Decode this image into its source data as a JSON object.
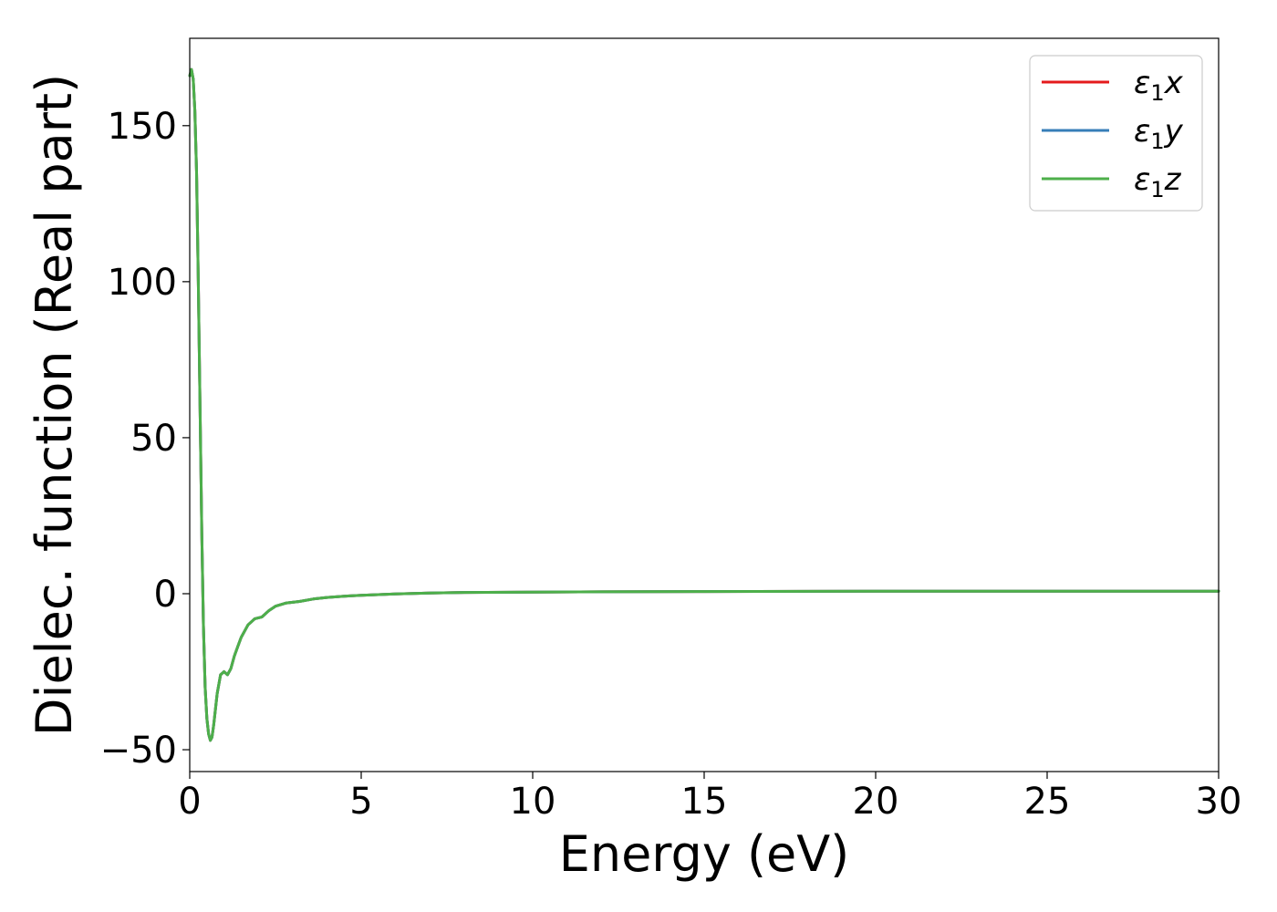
{
  "chart_data": {
    "type": "line",
    "xlabel": "Energy (eV)",
    "ylabel": "Dielec. function (Real part)",
    "xlim": [
      0,
      30
    ],
    "ylim": [
      -57,
      178
    ],
    "xticks": [
      0,
      5,
      10,
      15,
      20,
      25,
      30
    ],
    "xtick_labels": [
      "0",
      "5",
      "10",
      "15",
      "20",
      "25",
      "30"
    ],
    "yticks": [
      -50,
      0,
      50,
      100,
      150
    ],
    "ytick_labels": [
      "−50",
      "0",
      "50",
      "100",
      "150"
    ],
    "grid": false,
    "legend_position": "top-right",
    "series": [
      {
        "name": "ε1x",
        "legend_base": "ε",
        "legend_sub": "1",
        "legend_var": "x",
        "color": "#e41a1c",
        "x": [
          0,
          0.05,
          0.1,
          0.15,
          0.2,
          0.25,
          0.3,
          0.35,
          0.4,
          0.45,
          0.5,
          0.55,
          0.6,
          0.65,
          0.7,
          0.8,
          0.9,
          1.0,
          1.1,
          1.2,
          1.3,
          1.4,
          1.5,
          1.7,
          1.9,
          2.1,
          2.3,
          2.5,
          2.8,
          3.2,
          3.6,
          4.0,
          4.5,
          5,
          6,
          7,
          8,
          10,
          12,
          15,
          20,
          25,
          30
        ],
        "y": [
          166,
          168,
          165,
          155,
          135,
          100,
          60,
          20,
          -10,
          -30,
          -40,
          -45,
          -47,
          -46,
          -42,
          -32,
          -26,
          -25,
          -26,
          -24,
          -20,
          -17,
          -14,
          -10,
          -8,
          -7.5,
          -5.5,
          -4,
          -3,
          -2.5,
          -1.7,
          -1.2,
          -0.8,
          -0.5,
          -0.1,
          0.2,
          0.4,
          0.5,
          0.6,
          0.7,
          0.8,
          0.8,
          0.8
        ]
      },
      {
        "name": "ε1y",
        "legend_base": "ε",
        "legend_sub": "1",
        "legend_var": "y",
        "color": "#377eb8",
        "x": [
          0,
          0.05,
          0.1,
          0.15,
          0.2,
          0.25,
          0.3,
          0.35,
          0.4,
          0.45,
          0.5,
          0.55,
          0.6,
          0.65,
          0.7,
          0.8,
          0.9,
          1.0,
          1.1,
          1.2,
          1.3,
          1.4,
          1.5,
          1.7,
          1.9,
          2.1,
          2.3,
          2.5,
          2.8,
          3.2,
          3.6,
          4.0,
          4.5,
          5,
          6,
          7,
          8,
          10,
          12,
          15,
          20,
          25,
          30
        ],
        "y": [
          166,
          168,
          165,
          155,
          135,
          100,
          60,
          20,
          -10,
          -30,
          -40,
          -45,
          -47,
          -46,
          -42,
          -32,
          -26,
          -25,
          -26,
          -24,
          -20,
          -17,
          -14,
          -10,
          -8,
          -7.5,
          -5.5,
          -4,
          -3,
          -2.5,
          -1.7,
          -1.2,
          -0.8,
          -0.5,
          -0.1,
          0.2,
          0.4,
          0.5,
          0.6,
          0.7,
          0.8,
          0.8,
          0.8
        ]
      },
      {
        "name": "ε1z",
        "legend_base": "ε",
        "legend_sub": "1",
        "legend_var": "z",
        "color": "#4daf4a",
        "x": [
          0,
          0.05,
          0.1,
          0.15,
          0.2,
          0.25,
          0.3,
          0.35,
          0.4,
          0.45,
          0.5,
          0.55,
          0.6,
          0.65,
          0.7,
          0.8,
          0.9,
          1.0,
          1.1,
          1.2,
          1.3,
          1.4,
          1.5,
          1.7,
          1.9,
          2.1,
          2.3,
          2.5,
          2.8,
          3.2,
          3.6,
          4.0,
          4.5,
          5,
          6,
          7,
          8,
          10,
          12,
          15,
          20,
          25,
          30
        ],
        "y": [
          166,
          168,
          165,
          155,
          135,
          100,
          60,
          20,
          -10,
          -30,
          -40,
          -45,
          -47,
          -46,
          -42,
          -32,
          -26,
          -25,
          -26,
          -24,
          -20,
          -17,
          -14,
          -10,
          -8,
          -7.5,
          -5.5,
          -4,
          -3,
          -2.5,
          -1.7,
          -1.2,
          -0.8,
          -0.5,
          -0.1,
          0.2,
          0.4,
          0.5,
          0.6,
          0.7,
          0.8,
          0.8,
          0.8
        ]
      }
    ]
  }
}
